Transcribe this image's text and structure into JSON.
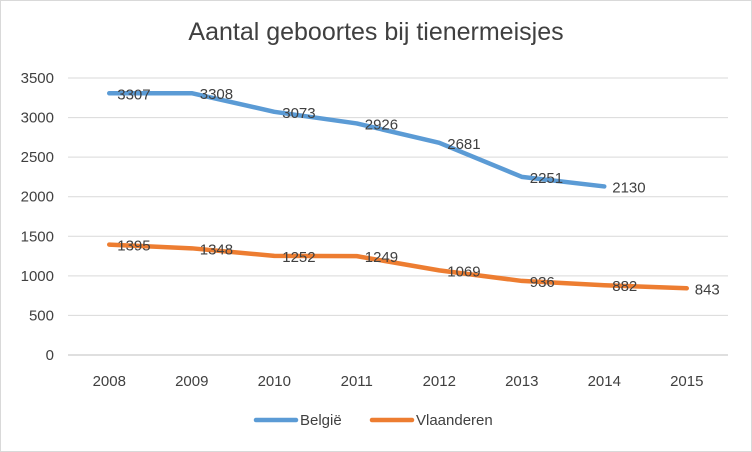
{
  "chart_data": {
    "type": "line",
    "title": "Aantal geboortes bij tienermeisjes",
    "xlabel": "",
    "ylabel": "",
    "categories": [
      "2008",
      "2009",
      "2010",
      "2011",
      "2012",
      "2013",
      "2014",
      "2015"
    ],
    "yticks": [
      "0",
      "500",
      "1000",
      "1500",
      "2000",
      "2500",
      "3000",
      "3500"
    ],
    "ylim": [
      0,
      3500
    ],
    "grid": true,
    "legend_position": "bottom",
    "series": [
      {
        "name": "België",
        "color": "#5b9bd5",
        "values": [
          3307,
          3308,
          3073,
          2926,
          2681,
          2251,
          2130,
          null
        ],
        "labels": [
          "3307",
          "3308",
          "3073",
          "2926",
          "2681",
          "2251",
          "2130",
          ""
        ]
      },
      {
        "name": "Vlaanderen",
        "color": "#ed7d31",
        "values": [
          1395,
          1348,
          1252,
          1249,
          1069,
          936,
          882,
          843
        ],
        "labels": [
          "1395",
          "1348",
          "1252",
          "1249",
          "1069",
          "936",
          "882",
          "843"
        ]
      }
    ]
  }
}
